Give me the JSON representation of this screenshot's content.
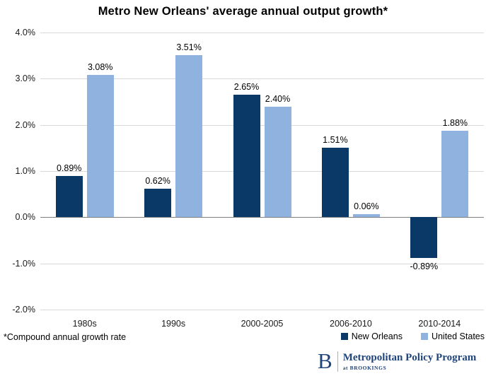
{
  "title": "Metro New Orleans'  average annual output growth*",
  "footnote": "*Compound annual growth rate",
  "legend": {
    "items": [
      {
        "label": "New Orleans",
        "color": "#0A3967"
      },
      {
        "label": "United States",
        "color": "#8FB2DF"
      }
    ]
  },
  "logo": {
    "letter": "B",
    "line1": "Metropolitan Policy Program",
    "line2": "at BROOKINGS",
    "color": "#20457A"
  },
  "colors": {
    "bar_new_orleans": "#0A3967",
    "bar_united_states": "#8FB2DF",
    "gridline": "#D9D9D9",
    "zero_line": "#7F7F7F",
    "text": "#000000",
    "background": "#FFFFFF"
  },
  "chart_data": {
    "type": "bar",
    "title": "Metro New Orleans'  average annual output growth*",
    "categories": [
      "1980s",
      "1990s",
      "2000-2005",
      "2006-2010",
      "2010-2014"
    ],
    "series": [
      {
        "name": "New Orleans",
        "color": "#0A3967",
        "values": [
          0.89,
          0.62,
          2.65,
          1.51,
          -0.89
        ],
        "labels": [
          "0.89%",
          "0.62%",
          "2.65%",
          "1.51%",
          "-0.89%"
        ]
      },
      {
        "name": "United States",
        "color": "#8FB2DF",
        "values": [
          3.08,
          3.51,
          2.4,
          0.06,
          1.88
        ],
        "labels": [
          "3.08%",
          "3.51%",
          "2.40%",
          "0.06%",
          "1.88%"
        ]
      }
    ],
    "xlabel": "",
    "ylabel": "",
    "ylim": [
      -2,
      4
    ],
    "yticks": [
      {
        "value": 4,
        "label": "4.0%"
      },
      {
        "value": 3,
        "label": "3.0%"
      },
      {
        "value": 2,
        "label": "2.0%"
      },
      {
        "value": 1,
        "label": "1.0%"
      },
      {
        "value": 0,
        "label": "0.0%"
      },
      {
        "value": -1,
        "label": "-1.0%"
      },
      {
        "value": -2,
        "label": "-2.0%"
      }
    ],
    "grid": true,
    "legend_position": "bottom-right",
    "value_labels": true
  }
}
